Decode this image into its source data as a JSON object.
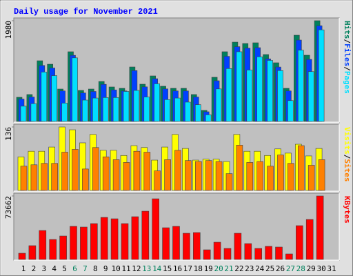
{
  "chart_data": {
    "type": "bar",
    "title": "Daily usage for November 2021",
    "separator": "/",
    "categories": [
      "1",
      "2",
      "3",
      "4",
      "5",
      "6",
      "7",
      "8",
      "9",
      "10",
      "11",
      "12",
      "13",
      "14",
      "15",
      "16",
      "17",
      "18",
      "19",
      "20",
      "21",
      "22",
      "23",
      "24",
      "25",
      "26",
      "27",
      "28",
      "29",
      "30",
      "31"
    ],
    "category_colors": [
      "#000000",
      "#000000",
      "#000000",
      "#000000",
      "#000000",
      "#00805c",
      "#00805c",
      "#000000",
      "#000000",
      "#000000",
      "#000000",
      "#000000",
      "#00805c",
      "#00805c",
      "#000000",
      "#000000",
      "#000000",
      "#000000",
      "#000000",
      "#00805c",
      "#00805c",
      "#000000",
      "#000000",
      "#000000",
      "#000000",
      "#000000",
      "#00805c",
      "#00805c",
      "#000000",
      "#000000",
      "#000000"
    ],
    "panels": [
      {
        "ylim": [
          0,
          1980
        ],
        "yticks": [
          1980
        ],
        "series": [
          {
            "name": "Hits",
            "color": "#00805c",
            "values": [
              475,
              529,
              1193,
              1125,
              637,
              1370,
              610,
              637,
              786,
              678,
              651,
              1071,
              732,
              895,
              692,
              651,
              651,
              529,
              217,
              868,
              1370,
              1559,
              1532,
              1546,
              1315,
              1153,
              651,
              1695,
              1302,
              1980,
              0
            ]
          },
          {
            "name": "Files",
            "color": "#0040ff",
            "values": [
              440,
              480,
              1100,
              1050,
              600,
              1300,
              560,
              590,
              730,
              620,
              600,
              1000,
              680,
              840,
              640,
              600,
              600,
              480,
              190,
              800,
              1280,
              1470,
              1440,
              1450,
              1230,
              1070,
              600,
              1600,
              1220,
              1880,
              0
            ]
          },
          {
            "name": "Pages",
            "color": "#00e0ff",
            "values": [
              300,
              350,
              970,
              900,
              360,
              1250,
              420,
              460,
              470,
              470,
              590,
              610,
              480,
              740,
              430,
              460,
              380,
              330,
              130,
              640,
              1040,
              1370,
              1010,
              1270,
              1200,
              1000,
              410,
              1400,
              980,
              1800,
              0
            ]
          }
        ]
      },
      {
        "ylim": [
          0,
          136
        ],
        "yticks": [
          136
        ],
        "series": [
          {
            "name": "Visits",
            "color": "#ffff00",
            "values": [
              72,
              84,
              84,
              93,
              136,
              130,
              102,
              120,
              86,
              86,
              75,
              96,
              92,
              65,
              93,
              120,
              90,
              65,
              67,
              67,
              62,
              120,
              84,
              84,
              75,
              89,
              80,
              99,
              74,
              90,
              0
            ]
          },
          {
            "name": "Sites",
            "color": "#ff8000",
            "values": [
              52,
              55,
              58,
              58,
              82,
              88,
              46,
              92,
              72,
              66,
              60,
              84,
              82,
              42,
              66,
              86,
              64,
              62,
              64,
              62,
              36,
              97,
              60,
              62,
              52,
              76,
              58,
              96,
              54,
              66,
              0
            ]
          }
        ]
      },
      {
        "ylim": [
          0,
          73662
        ],
        "yticks": [
          73662
        ],
        "series": [
          {
            "name": "KBytes",
            "color": "#ff0000",
            "values": [
              7200,
              16000,
              33600,
              23200,
              27200,
              38400,
              37600,
              41600,
              48800,
              47200,
              41600,
              49600,
              56000,
              70400,
              36800,
              38400,
              30400,
              31200,
              11200,
              20000,
              12800,
              30400,
              18400,
              12800,
              15200,
              14400,
              6400,
              39200,
              46400,
              73662,
              0
            ]
          }
        ]
      }
    ]
  }
}
